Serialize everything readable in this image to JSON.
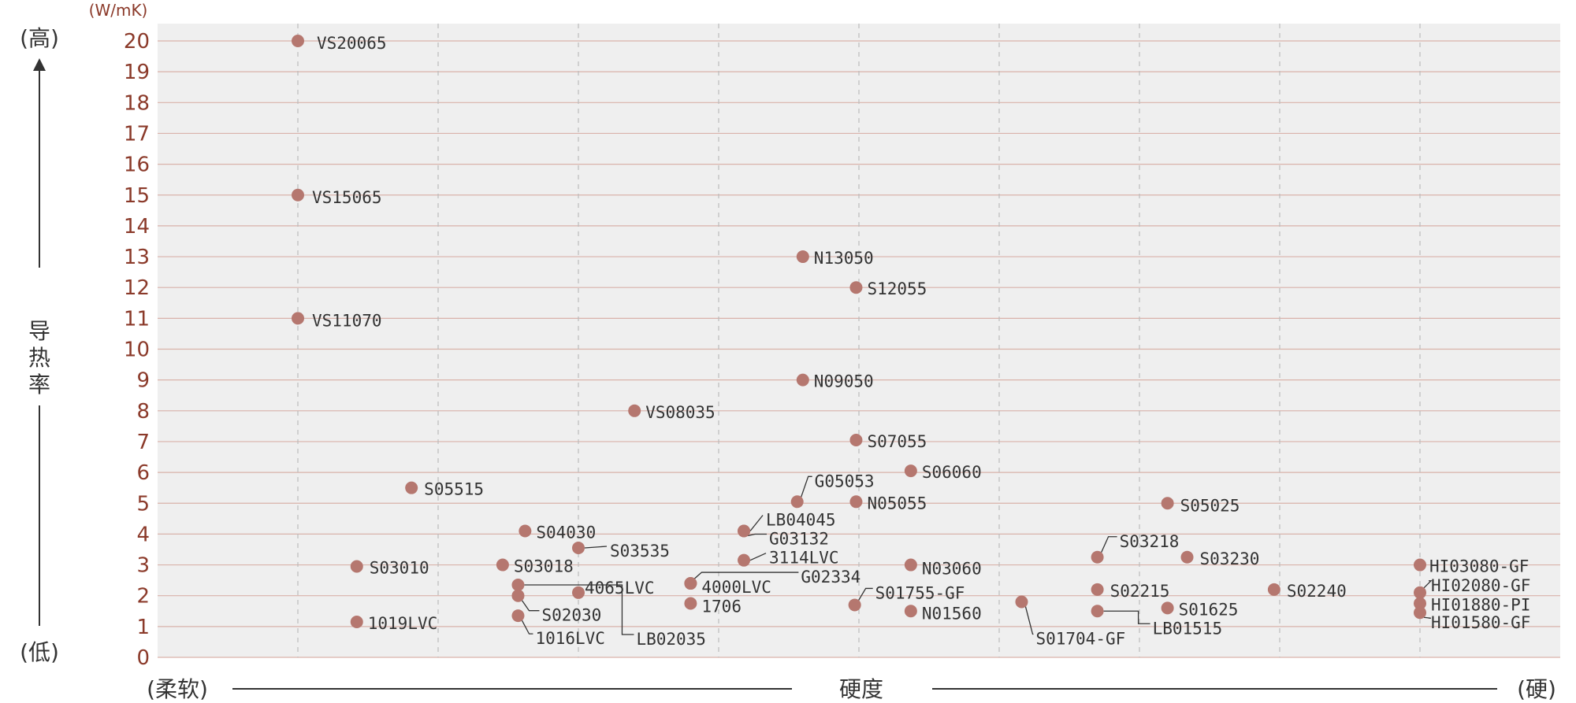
{
  "chart_data": {
    "type": "scatter",
    "title": "",
    "xlabel": "硬度",
    "ylabel": "导热率",
    "y_unit": "(W/mK)",
    "y_high": "(高)",
    "y_low": "(低)",
    "x_low": "(柔软)",
    "x_high": "(硬)",
    "ylim": [
      0,
      20
    ],
    "yticks": [
      "0",
      "1",
      "2",
      "3",
      "4",
      "5",
      "6",
      "7",
      "8",
      "9",
      "10",
      "11",
      "12",
      "13",
      "14",
      "15",
      "16",
      "17",
      "18",
      "19",
      "20"
    ],
    "x_scale": "qualitative hardness position, 0 (soft) to 10 (hard)",
    "xlim": [
      0,
      10
    ],
    "grid": true,
    "marker_color": "#b5776f",
    "points": [
      {
        "label": "VS20065",
        "x": 1.0,
        "y": 20.0
      },
      {
        "label": "VS15065",
        "x": 1.0,
        "y": 15.0
      },
      {
        "label": "VS11070",
        "x": 1.0,
        "y": 11.0
      },
      {
        "label": "S05515",
        "x": 1.81,
        "y": 5.5
      },
      {
        "label": "S03010",
        "x": 1.42,
        "y": 2.95
      },
      {
        "label": "1019LVC",
        "x": 1.42,
        "y": 1.15
      },
      {
        "label": "S04030",
        "x": 2.62,
        "y": 4.1
      },
      {
        "label": "S03535",
        "x": 3.0,
        "y": 3.55
      },
      {
        "label": "S03018",
        "x": 2.46,
        "y": 3.0
      },
      {
        "label": "4065LVC",
        "x": 3.0,
        "y": 2.1
      },
      {
        "label": "S02030",
        "x": 2.57,
        "y": 2.0
      },
      {
        "label": "1016LVC",
        "x": 2.57,
        "y": 1.35
      },
      {
        "label": "LB02035",
        "x": 2.57,
        "y": 2.35
      },
      {
        "label": "VS08035",
        "x": 3.4,
        "y": 8.0
      },
      {
        "label": "4000LVC",
        "x": 3.8,
        "y": 2.4
      },
      {
        "label": "1706",
        "x": 3.8,
        "y": 1.75
      },
      {
        "label": "N13050",
        "x": 4.6,
        "y": 13.0
      },
      {
        "label": "N09050",
        "x": 4.6,
        "y": 9.0
      },
      {
        "label": "G05053",
        "x": 4.56,
        "y": 5.05
      },
      {
        "label": "LB04045",
        "x": 4.18,
        "y": 4.1
      },
      {
        "label": "G03132",
        "x": 4.18,
        "y": 4.1
      },
      {
        "label": "3114LVC",
        "x": 4.18,
        "y": 3.15
      },
      {
        "label": "G02334",
        "x": 3.8,
        "y": 2.4
      },
      {
        "label": "S12055",
        "x": 4.98,
        "y": 12.0
      },
      {
        "label": "S07055",
        "x": 4.98,
        "y": 7.05
      },
      {
        "label": "N05055",
        "x": 4.98,
        "y": 5.05
      },
      {
        "label": "S01755-GF",
        "x": 4.97,
        "y": 1.7
      },
      {
        "label": "S06060",
        "x": 5.37,
        "y": 6.05
      },
      {
        "label": "N03060",
        "x": 5.37,
        "y": 3.0
      },
      {
        "label": "N01560",
        "x": 5.37,
        "y": 1.5
      },
      {
        "label": "S01704-GF",
        "x": 6.16,
        "y": 1.8
      },
      {
        "label": "S03218",
        "x": 6.7,
        "y": 3.25
      },
      {
        "label": "S02215",
        "x": 6.7,
        "y": 2.2
      },
      {
        "label": "LB01515",
        "x": 6.7,
        "y": 1.5
      },
      {
        "label": "S05025",
        "x": 7.2,
        "y": 5.0
      },
      {
        "label": "S03230",
        "x": 7.34,
        "y": 3.25
      },
      {
        "label": "S01625",
        "x": 7.2,
        "y": 1.6
      },
      {
        "label": "S02240",
        "x": 7.96,
        "y": 2.2
      },
      {
        "label": "HI03080-GF",
        "x": 9.0,
        "y": 3.0
      },
      {
        "label": "HI02080-GF",
        "x": 9.0,
        "y": 2.1
      },
      {
        "label": "HI01880-PI",
        "x": 9.0,
        "y": 1.75
      },
      {
        "label": "HI01580-GF",
        "x": 9.0,
        "y": 1.45
      }
    ]
  }
}
